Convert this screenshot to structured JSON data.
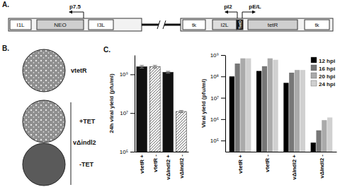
{
  "diagram": {
    "label": "A.",
    "left_construct": [
      "I1L",
      "NEO",
      "I3L"
    ],
    "left_promoter": "p7.5",
    "right_construct": [
      "tk",
      "I2L",
      "TetO",
      "tetR",
      "tk"
    ],
    "right_promoters": [
      "pI2",
      "pE/L"
    ]
  },
  "plaques": {
    "label": "B.",
    "images": [
      "vtetR",
      "+TET",
      "-TET"
    ],
    "group_label": "vΔindl2"
  },
  "chart_data": [
    {
      "type": "bar",
      "annotations": [
        "C."
      ],
      "y_label": "24h viral yield (pfu/ml)",
      "categories": [
        "vtetR +",
        "vtetR -",
        "vΔindl2 +",
        "vΔindl2 -"
      ],
      "values": [
        2500000000,
        2500000000,
        1300000000,
        12000000
      ],
      "errors": [
        400000000,
        400000000,
        150000000,
        1500000
      ],
      "colors": [
        "#111111",
        "#ffffff",
        "#111111",
        "#ffffff"
      ],
      "log": "y",
      "ylim": [
        100000,
        10000000000
      ],
      "yticks": [
        {
          "value": 100000,
          "label": "10⁵"
        },
        {
          "value": 10000000,
          "label": "10⁷"
        },
        {
          "value": 1000000000,
          "label": "10⁹"
        }
      ]
    },
    {
      "type": "bar",
      "y_label": "Viral yield (pfu/ml)",
      "categories": [
        "vtetR +",
        "vtetR -",
        "vΔindl2 +",
        "vΔindl2 -"
      ],
      "series": [
        {
          "name": "12 hpi",
          "color": "#000000",
          "values": [
            100000000,
            180000000,
            50000000,
            80000
          ]
        },
        {
          "name": "16 hpi",
          "color": "#777777",
          "values": [
            400000000,
            300000000,
            150000000,
            300000
          ]
        },
        {
          "name": "20 hpi",
          "color": "#aaaaaa",
          "values": [
            700000000,
            700000000,
            200000000,
            900000
          ]
        },
        {
          "name": "24 hpi",
          "color": "#d0d0d0",
          "values": [
            700000000,
            600000000,
            200000000,
            1200000
          ]
        }
      ],
      "log": "y",
      "ylim": [
        30000,
        1000000000
      ],
      "legend": "top-right",
      "yticks": [
        {
          "value": 100000,
          "label": "10⁵"
        },
        {
          "value": 1000000,
          "label": "10⁶"
        },
        {
          "value": 10000000,
          "label": "10⁷"
        },
        {
          "value": 100000000,
          "label": "10⁸"
        },
        {
          "value": 1000000000,
          "label": "10⁹"
        }
      ]
    }
  ]
}
